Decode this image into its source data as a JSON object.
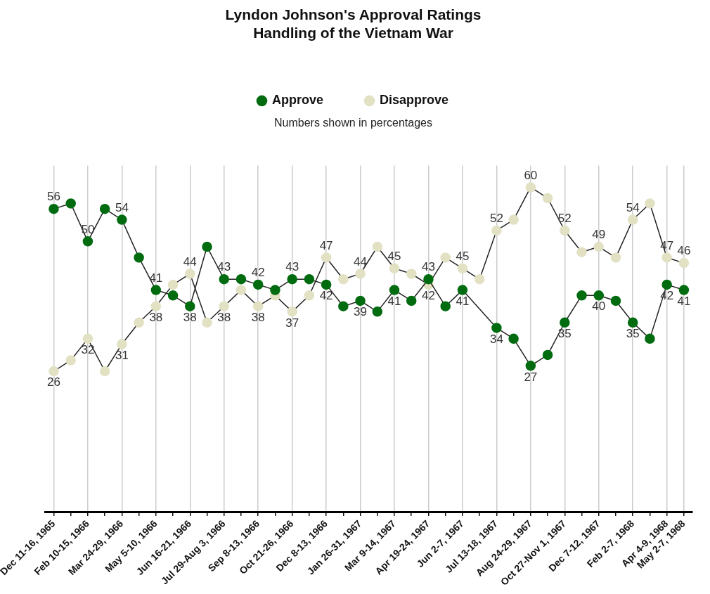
{
  "chart_data": {
    "type": "line",
    "title": "Lyndon Johnson's Approval Ratings\nHandling of the Vietnam War",
    "subtitle": "Numbers shown in percentages",
    "categories": [
      "Dec 11-16, 1965",
      null,
      "Feb 10-15, 1966",
      null,
      "Mar 24-29, 1966",
      null,
      "May 5-10, 1966",
      null,
      "Jun 16-21, 1966",
      null,
      "Jul 29-Aug 3, 1966",
      null,
      "Sep 8-13, 1966",
      null,
      "Oct 21-26, 1966",
      null,
      "Dec 8-13, 1966",
      null,
      "Jan 26-31, 1967",
      null,
      "Mar 9-14, 1967",
      null,
      "Apr 19-24, 1967",
      null,
      "Jun 2-7, 1967",
      null,
      "Jul 13-18, 1967",
      null,
      "Aug 24-29, 1967",
      null,
      "Oct 27-Nov 1, 1967",
      null,
      "Dec 7-12, 1967",
      null,
      "Feb 2-7, 1968",
      null,
      "Apr 4-9, 1968",
      "May 2-7, 1968"
    ],
    "series": [
      {
        "name": "Approve",
        "color": "#006b0f",
        "values": [
          56,
          57,
          50,
          56,
          54,
          47,
          41,
          40,
          38,
          49,
          43,
          43,
          42,
          41,
          43,
          43,
          42,
          38,
          39,
          37,
          41,
          39,
          43,
          38,
          41,
          null,
          34,
          32,
          27,
          29,
          35,
          40,
          40,
          39,
          35,
          32,
          42,
          41
        ],
        "value_labels": [
          "56",
          null,
          "50",
          null,
          "54",
          null,
          "41",
          null,
          "38",
          null,
          "43",
          null,
          "42",
          null,
          "43",
          null,
          "42",
          null,
          "39",
          null,
          "41",
          null,
          "43",
          null,
          "41",
          null,
          "34",
          null,
          "27",
          null,
          "35",
          null,
          "40",
          null,
          "35",
          null,
          "42",
          "41"
        ]
      },
      {
        "name": "Disapprove",
        "color": "#e2e1c3",
        "values": [
          26,
          28,
          32,
          26,
          31,
          35,
          38,
          42,
          44,
          35,
          38,
          41,
          38,
          40,
          37,
          40,
          47,
          43,
          44,
          49,
          45,
          44,
          42,
          47,
          45,
          43,
          52,
          54,
          60,
          58,
          52,
          48,
          49,
          47,
          54,
          57,
          47,
          46
        ],
        "value_labels": [
          "26",
          null,
          "32",
          null,
          "31",
          null,
          "38",
          null,
          "44",
          null,
          "38",
          null,
          "38",
          null,
          "37",
          null,
          "47",
          null,
          "44",
          null,
          "45",
          null,
          "42",
          null,
          "45",
          null,
          "52",
          null,
          "60",
          null,
          "52",
          null,
          "49",
          null,
          "54",
          null,
          "47",
          "46"
        ]
      }
    ],
    "ylim": [
      0,
      64
    ],
    "grid": "x",
    "legend": "top",
    "marker": "circle"
  }
}
